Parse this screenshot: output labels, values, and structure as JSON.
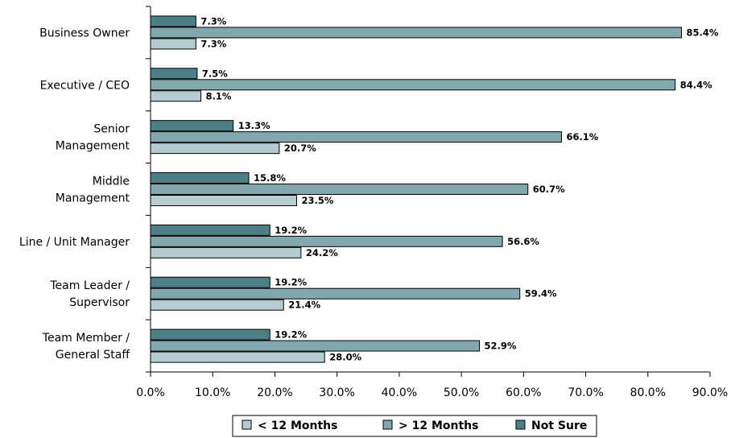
{
  "chart_data": {
    "type": "bar",
    "orientation": "horizontal",
    "categories": [
      [
        "Business Owner"
      ],
      [
        "Executive / CEO"
      ],
      [
        "Senior",
        "Management"
      ],
      [
        "Middle",
        "Management"
      ],
      [
        "Line / Unit Manager"
      ],
      [
        "Team Leader /",
        "Supervisor"
      ],
      [
        "Team Member /",
        "General Staff"
      ]
    ],
    "series": [
      {
        "name": "Not Sure",
        "color": "#4d7f86",
        "values": [
          7.3,
          7.5,
          13.3,
          15.8,
          19.2,
          19.2,
          19.2
        ],
        "labels": [
          "7.3%",
          "7.5%",
          "13.3%",
          "15.8%",
          "19.2%",
          "19.2%",
          "19.2%"
        ]
      },
      {
        "name": "> 12 Months",
        "color": "#80a8ad",
        "values": [
          85.4,
          84.4,
          66.1,
          60.7,
          56.6,
          59.4,
          52.9
        ],
        "labels": [
          "85.4%",
          "84.4%",
          "66.1%",
          "60.7%",
          "56.6%",
          "59.4%",
          "52.9%"
        ]
      },
      {
        "name": "< 12 Months",
        "color": "#b4ccd0",
        "values": [
          7.3,
          8.1,
          20.7,
          23.5,
          24.2,
          21.4,
          28.0
        ],
        "labels": [
          "7.3%",
          "8.1%",
          "20.7%",
          "23.5%",
          "24.2%",
          "21.4%",
          "28.0%"
        ]
      }
    ],
    "xlim": [
      0,
      90
    ],
    "xticks": [
      "0.0%",
      "10.0%",
      "20.0%",
      "30.0%",
      "40.0%",
      "50.0%",
      "60.0%",
      "70.0%",
      "80.0%",
      "90.0%"
    ],
    "legend": {
      "position": "bottom",
      "entries": [
        {
          "name": "< 12 Months",
          "color": "#b4ccd0"
        },
        {
          "name": "> 12 Months",
          "color": "#80a8ad"
        },
        {
          "name": "Not Sure",
          "color": "#4d7f86"
        }
      ]
    },
    "grid": false
  }
}
